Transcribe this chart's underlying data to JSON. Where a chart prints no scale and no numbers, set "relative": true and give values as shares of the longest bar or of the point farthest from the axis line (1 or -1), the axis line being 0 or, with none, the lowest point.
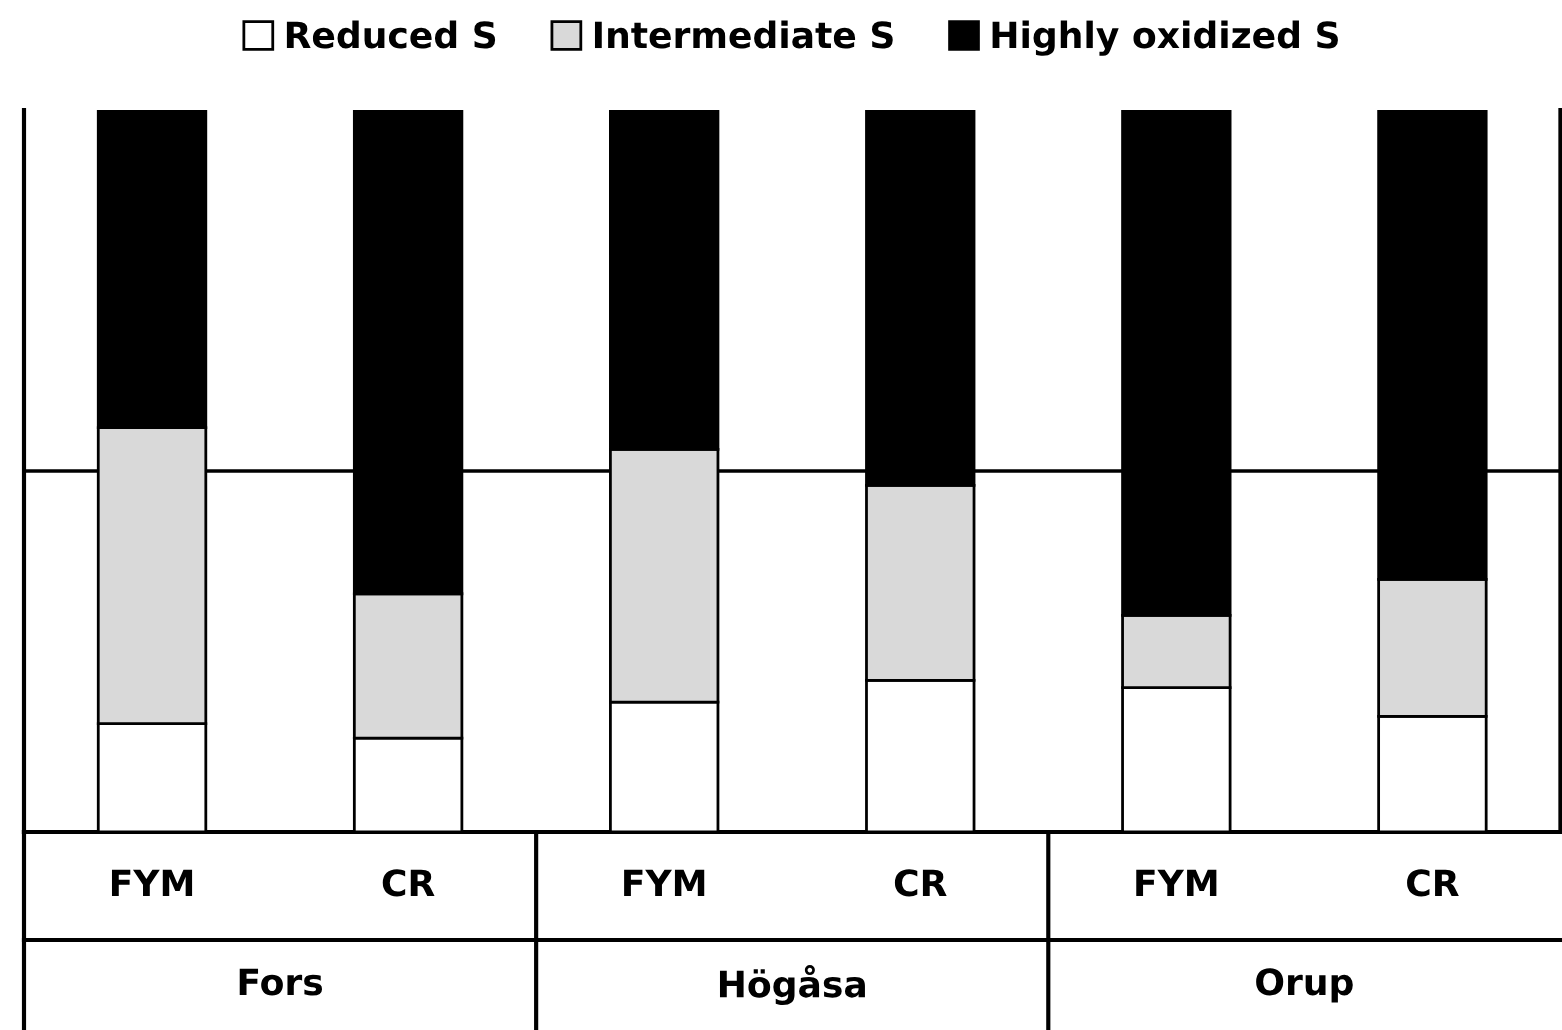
{
  "chart_data": {
    "type": "bar",
    "stacked": true,
    "relative": true,
    "categories": [
      "FYM",
      "CR",
      "FYM",
      "CR",
      "FYM",
      "CR"
    ],
    "series": [
      {
        "name": "Reduced S",
        "color": "#ffffff",
        "values": [
          0.15,
          0.13,
          0.18,
          0.21,
          0.2,
          0.16
        ]
      },
      {
        "name": "Intermediate S",
        "color": "#d9d9d9",
        "values": [
          0.41,
          0.2,
          0.35,
          0.27,
          0.1,
          0.19
        ]
      },
      {
        "name": "Highly oxidized S",
        "color": "#000000",
        "values": [
          0.44,
          0.67,
          0.47,
          0.52,
          0.7,
          0.65
        ]
      }
    ],
    "annotations": [
      "Fors",
      "Högåsa",
      "Orup"
    ],
    "ref_lines": [
      {
        "axis": "y",
        "value": 0.5,
        "color": "#000000"
      }
    ],
    "legend": "top"
  }
}
